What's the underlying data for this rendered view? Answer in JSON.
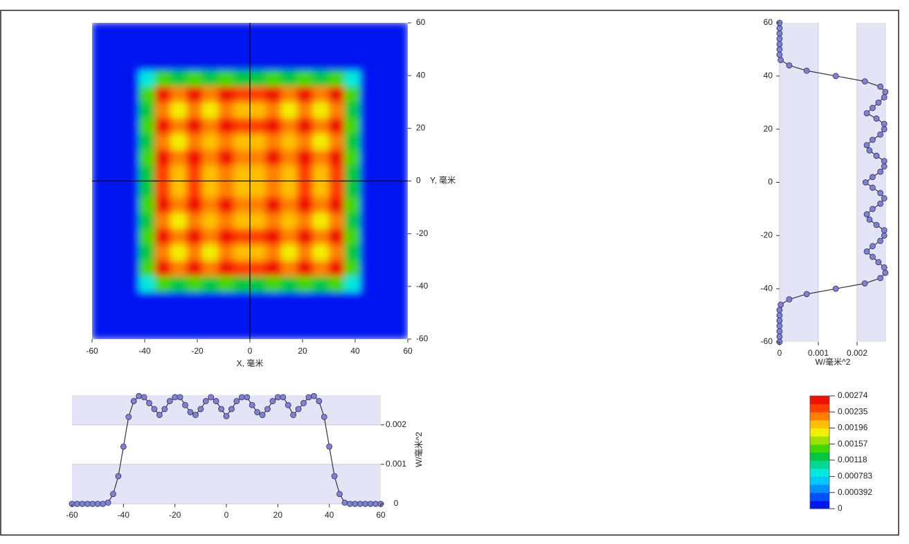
{
  "chart_data": [
    {
      "type": "heatmap",
      "xlabel": "X, 毫米",
      "ylabel": "Y, 毫米",
      "xlim": [
        -60,
        60
      ],
      "ylim": [
        -60,
        60
      ],
      "xticks": [
        -60,
        -40,
        -20,
        0,
        20,
        40,
        60
      ],
      "yticks": [
        -60,
        -40,
        -20,
        0,
        20,
        40,
        60
      ],
      "x": [
        -57,
        -51,
        -45,
        -39,
        -33,
        -27,
        -21,
        -15,
        -9,
        -3,
        3,
        9,
        15,
        21,
        27,
        33,
        39,
        45,
        51,
        57
      ],
      "y": [
        -57,
        -51,
        -45,
        -39,
        -33,
        -27,
        -21,
        -15,
        -9,
        -3,
        3,
        9,
        15,
        21,
        27,
        33,
        39,
        45,
        51,
        57
      ],
      "z": [
        [
          0,
          0,
          0,
          0,
          0,
          0,
          0,
          0,
          0,
          0,
          0,
          0,
          0,
          0,
          0,
          0,
          0,
          0,
          0,
          0
        ],
        [
          0,
          0,
          0,
          0,
          0,
          0,
          0,
          0,
          0,
          0,
          0,
          0,
          0,
          0,
          0,
          0,
          0,
          0,
          0,
          0
        ],
        [
          0,
          0,
          0,
          3e-05,
          5e-05,
          4e-05,
          5e-05,
          5e-05,
          5e-05,
          5e-05,
          5e-05,
          5e-05,
          5e-05,
          5e-05,
          4e-05,
          5e-05,
          3e-05,
          0,
          0,
          0
        ],
        [
          0,
          0,
          3e-05,
          0.00083,
          0.00151,
          0.00124,
          0.00148,
          0.00128,
          0.00146,
          0.00133,
          0.00133,
          0.00146,
          0.00128,
          0.00148,
          0.00124,
          0.00151,
          0.00083,
          3e-05,
          0,
          0
        ],
        [
          0,
          0,
          5e-05,
          0.00151,
          0.00274,
          0.00225,
          0.00269,
          0.00233,
          0.00266,
          0.00241,
          0.00241,
          0.00266,
          0.00233,
          0.00269,
          0.00225,
          0.00274,
          0.00151,
          5e-05,
          0,
          0
        ],
        [
          0,
          0,
          4e-05,
          0.00124,
          0.00225,
          0.00184,
          0.0022,
          0.00191,
          0.00218,
          0.00198,
          0.00198,
          0.00218,
          0.00191,
          0.0022,
          0.00184,
          0.00225,
          0.00124,
          4e-05,
          0,
          0
        ],
        [
          0,
          0,
          5e-05,
          0.00148,
          0.00269,
          0.0022,
          0.00263,
          0.00228,
          0.0026,
          0.00236,
          0.00236,
          0.0026,
          0.00228,
          0.00263,
          0.0022,
          0.00269,
          0.00148,
          5e-05,
          0,
          0
        ],
        [
          0,
          0,
          5e-05,
          0.00128,
          0.00233,
          0.00191,
          0.00228,
          0.00198,
          0.00226,
          0.00205,
          0.00205,
          0.00226,
          0.00198,
          0.00228,
          0.00191,
          0.00233,
          0.00128,
          5e-05,
          0,
          0
        ],
        [
          0,
          0,
          5e-05,
          0.00146,
          0.00266,
          0.00218,
          0.0026,
          0.00226,
          0.00258,
          0.00234,
          0.00234,
          0.00258,
          0.00226,
          0.0026,
          0.00218,
          0.00266,
          0.00146,
          5e-05,
          0,
          0
        ],
        [
          0,
          0,
          5e-05,
          0.00133,
          0.00241,
          0.00198,
          0.00236,
          0.00205,
          0.00234,
          0.00212,
          0.00212,
          0.00234,
          0.00205,
          0.00236,
          0.00198,
          0.00241,
          0.00133,
          5e-05,
          0,
          0
        ],
        [
          0,
          0,
          5e-05,
          0.00133,
          0.00241,
          0.00198,
          0.00236,
          0.00205,
          0.00234,
          0.00212,
          0.00212,
          0.00234,
          0.00205,
          0.00236,
          0.00198,
          0.00241,
          0.00133,
          5e-05,
          0,
          0
        ],
        [
          0,
          0,
          5e-05,
          0.00146,
          0.00266,
          0.00218,
          0.0026,
          0.00226,
          0.00258,
          0.00234,
          0.00234,
          0.00258,
          0.00226,
          0.0026,
          0.00218,
          0.00266,
          0.00146,
          5e-05,
          0,
          0
        ],
        [
          0,
          0,
          5e-05,
          0.00128,
          0.00233,
          0.00191,
          0.00228,
          0.00198,
          0.00226,
          0.00205,
          0.00205,
          0.00226,
          0.00198,
          0.00228,
          0.00191,
          0.00233,
          0.00128,
          5e-05,
          0,
          0
        ],
        [
          0,
          0,
          5e-05,
          0.00148,
          0.00269,
          0.0022,
          0.00263,
          0.00228,
          0.0026,
          0.00236,
          0.00236,
          0.0026,
          0.00228,
          0.00263,
          0.0022,
          0.00269,
          0.00148,
          5e-05,
          0,
          0
        ],
        [
          0,
          0,
          4e-05,
          0.00124,
          0.00225,
          0.00184,
          0.0022,
          0.00191,
          0.00218,
          0.00198,
          0.00198,
          0.00218,
          0.00191,
          0.0022,
          0.00184,
          0.00225,
          0.00124,
          4e-05,
          0,
          0
        ],
        [
          0,
          0,
          5e-05,
          0.00151,
          0.00274,
          0.00225,
          0.00269,
          0.00233,
          0.00266,
          0.00241,
          0.00241,
          0.00266,
          0.00233,
          0.00269,
          0.00225,
          0.00274,
          0.00151,
          5e-05,
          0,
          0
        ],
        [
          0,
          0,
          3e-05,
          0.00083,
          0.00151,
          0.00124,
          0.00148,
          0.00128,
          0.00146,
          0.00133,
          0.00133,
          0.00146,
          0.00128,
          0.00148,
          0.00124,
          0.00151,
          0.00083,
          3e-05,
          0,
          0
        ],
        [
          0,
          0,
          0,
          3e-05,
          5e-05,
          4e-05,
          5e-05,
          5e-05,
          5e-05,
          5e-05,
          5e-05,
          5e-05,
          5e-05,
          5e-05,
          4e-05,
          5e-05,
          3e-05,
          0,
          0,
          0
        ],
        [
          0,
          0,
          0,
          0,
          0,
          0,
          0,
          0,
          0,
          0,
          0,
          0,
          0,
          0,
          0,
          0,
          0,
          0,
          0,
          0
        ],
        [
          0,
          0,
          0,
          0,
          0,
          0,
          0,
          0,
          0,
          0,
          0,
          0,
          0,
          0,
          0,
          0,
          0,
          0,
          0,
          0
        ]
      ],
      "zlim": [
        0,
        0.00274
      ],
      "zticks": [
        0,
        0.000392,
        0.000783,
        0.00118,
        0.00157,
        0.00196,
        0.00235,
        0.00274
      ],
      "colormap": [
        "#0018f0",
        "#0050ff",
        "#0090ff",
        "#00c8ff",
        "#00e8e0",
        "#00d890",
        "#00c840",
        "#40d800",
        "#a0e000",
        "#f0f000",
        "#ffc000",
        "#ff8000",
        "#ff4000",
        "#f01000"
      ],
      "crosshair": true
    },
    {
      "type": "line",
      "orientation": "vertical",
      "xlabel": "W/毫米^2",
      "xlim": [
        0,
        0.00275
      ],
      "xticks": [
        0,
        0.001,
        0.002
      ],
      "ylim": [
        -60,
        60
      ],
      "yticks": [
        -60,
        -40,
        -20,
        0,
        20,
        40,
        60
      ],
      "y": [
        -60,
        -58,
        -56,
        -54,
        -52,
        -50,
        -48,
        -46,
        -44,
        -42,
        -40,
        -38,
        -36,
        -34,
        -32,
        -30,
        -28,
        -26,
        -24,
        -22,
        -20,
        -18,
        -16,
        -14,
        -12,
        -10,
        -8,
        -6,
        -4,
        -2,
        0,
        2,
        4,
        6,
        8,
        10,
        12,
        14,
        16,
        18,
        20,
        22,
        24,
        26,
        28,
        30,
        32,
        34,
        36,
        38,
        40,
        42,
        44,
        46,
        48,
        50,
        52,
        54,
        56,
        58,
        60
      ],
      "values": [
        0,
        0,
        0,
        0,
        0,
        0,
        0,
        3e-05,
        0.00025,
        0.0007,
        0.00145,
        0.0022,
        0.0026,
        0.00273,
        0.0027,
        0.00255,
        0.0024,
        0.00225,
        0.0024,
        0.0026,
        0.0027,
        0.0027,
        0.0025,
        0.00232,
        0.00225,
        0.0024,
        0.0026,
        0.0027,
        0.0026,
        0.0024,
        0.00222,
        0.0024,
        0.0026,
        0.0027,
        0.0027,
        0.0025,
        0.00232,
        0.00225,
        0.0024,
        0.0026,
        0.0027,
        0.0027,
        0.0025,
        0.00225,
        0.0024,
        0.00255,
        0.0027,
        0.00273,
        0.0026,
        0.0022,
        0.00145,
        0.0007,
        0.00025,
        3e-05,
        0,
        0,
        0,
        0,
        0,
        0,
        0
      ],
      "color": "#7d80e0",
      "line_color": "#333333",
      "bands": true,
      "band_color": "#e3e4f6"
    },
    {
      "type": "line",
      "orientation": "horizontal",
      "ylabel": "W/毫米^2",
      "xlim": [
        -60,
        60
      ],
      "xticks": [
        -60,
        -40,
        -20,
        0,
        20,
        40,
        60
      ],
      "ylim": [
        0,
        0.00275
      ],
      "yticks": [
        0,
        0.001,
        0.002
      ],
      "x": [
        -60,
        -58,
        -56,
        -54,
        -52,
        -50,
        -48,
        -46,
        -44,
        -42,
        -40,
        -38,
        -36,
        -34,
        -32,
        -30,
        -28,
        -26,
        -24,
        -22,
        -20,
        -18,
        -16,
        -14,
        -12,
        -10,
        -8,
        -6,
        -4,
        -2,
        0,
        2,
        4,
        6,
        8,
        10,
        12,
        14,
        16,
        18,
        20,
        22,
        24,
        26,
        28,
        30,
        32,
        34,
        36,
        38,
        40,
        42,
        44,
        46,
        48,
        50,
        52,
        54,
        56,
        58,
        60
      ],
      "values": [
        0,
        0,
        0,
        0,
        0,
        0,
        0,
        3e-05,
        0.00025,
        0.0007,
        0.00145,
        0.0022,
        0.0026,
        0.00273,
        0.0027,
        0.00255,
        0.0024,
        0.00225,
        0.0024,
        0.0026,
        0.0027,
        0.0027,
        0.0025,
        0.00232,
        0.00225,
        0.0024,
        0.0026,
        0.0027,
        0.0026,
        0.0024,
        0.00222,
        0.0024,
        0.0026,
        0.0027,
        0.0027,
        0.0025,
        0.00232,
        0.00225,
        0.0024,
        0.0026,
        0.0027,
        0.0027,
        0.0025,
        0.00225,
        0.0024,
        0.00255,
        0.0027,
        0.00273,
        0.0026,
        0.0022,
        0.00145,
        0.0007,
        0.00025,
        3e-05,
        0,
        0,
        0,
        0,
        0,
        0,
        0
      ],
      "color": "#7d80e0",
      "line_color": "#333333",
      "bands": true,
      "band_color": "#e3e4f6"
    }
  ]
}
